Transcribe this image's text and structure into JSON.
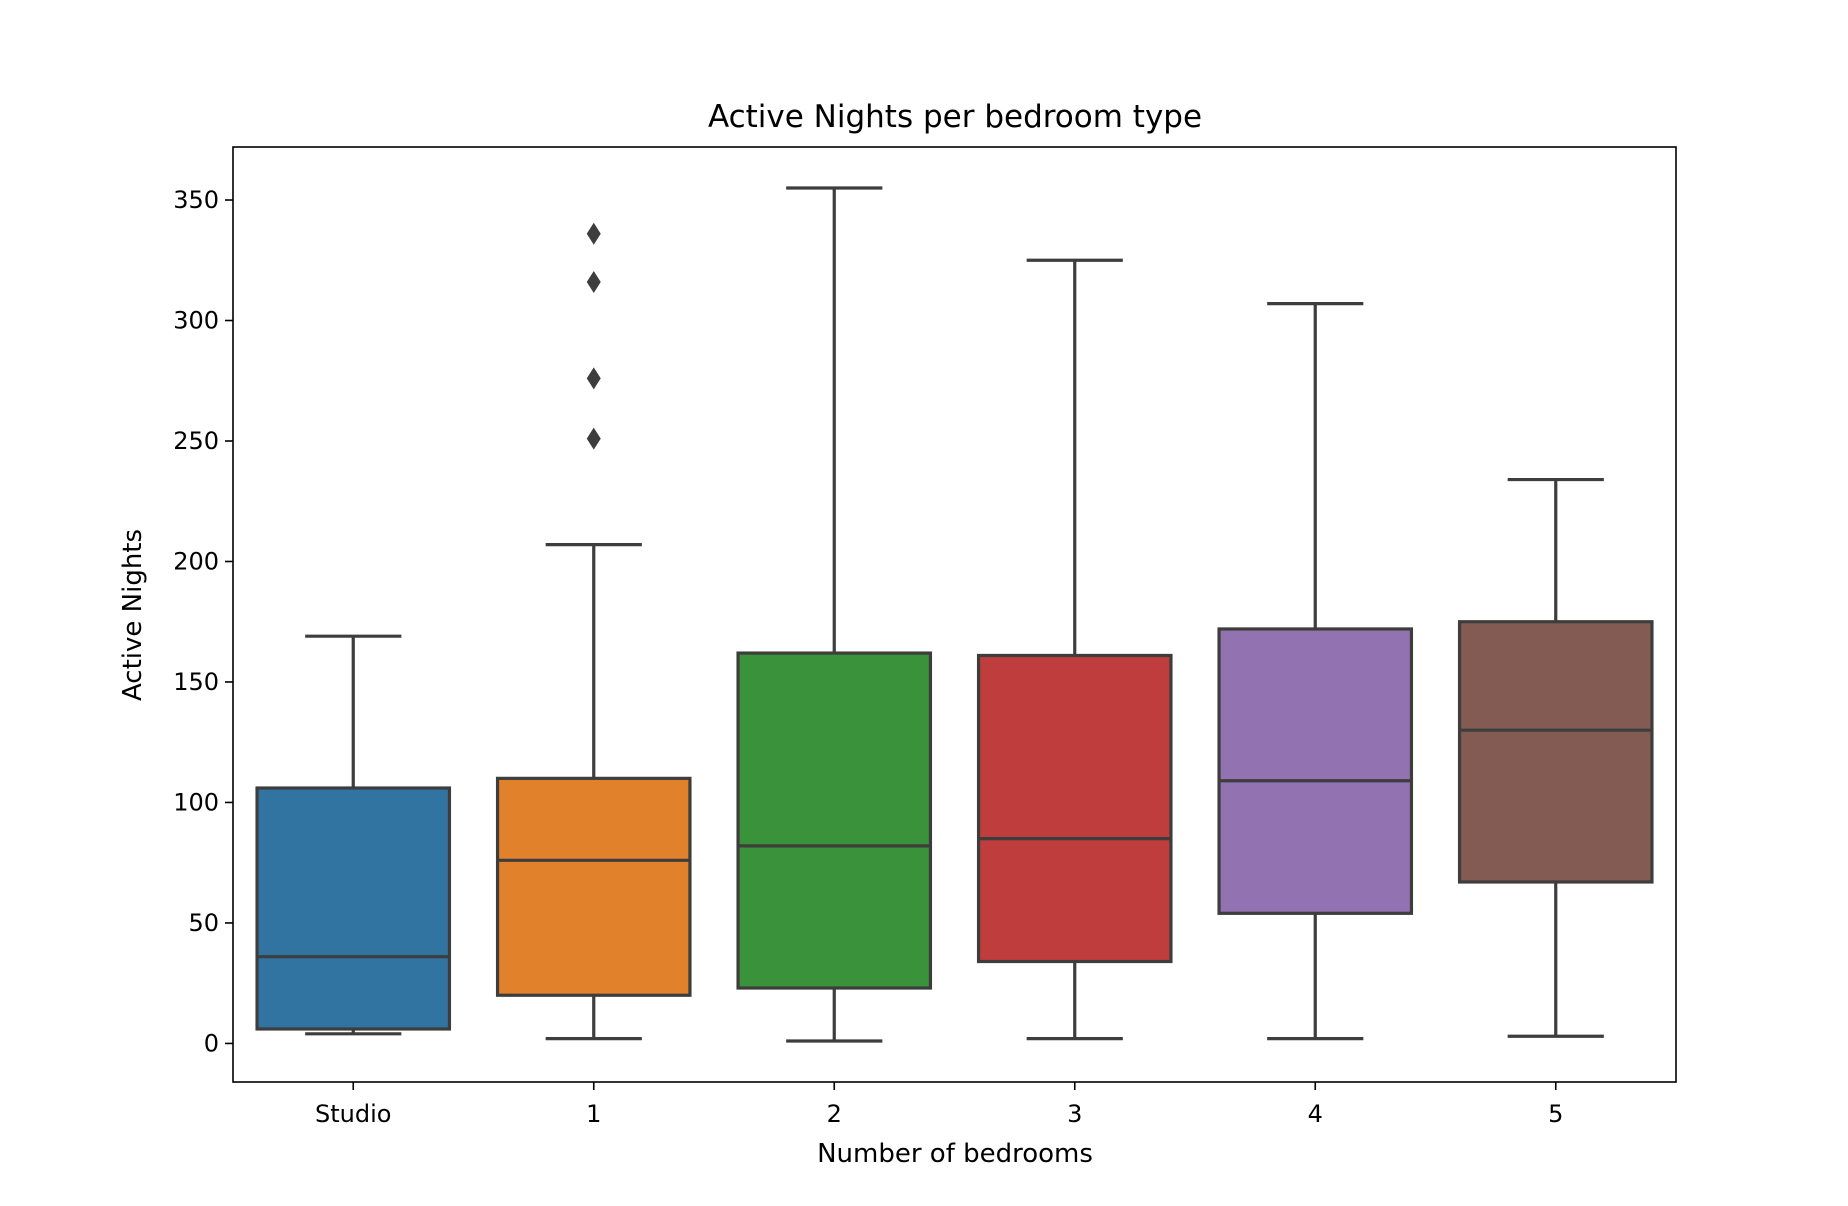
{
  "chart_data": {
    "type": "box",
    "title": "Active Nights per bedroom type",
    "xlabel": "Number of bedrooms",
    "ylabel": "Active Nights",
    "categories": [
      "Studio",
      "1",
      "2",
      "3",
      "4",
      "5"
    ],
    "ylim": [
      -16,
      372
    ],
    "yticks": [
      0,
      50,
      100,
      150,
      200,
      250,
      300,
      350
    ],
    "grid": false,
    "legend": "none",
    "boxes": [
      {
        "category": "Studio",
        "whisker_low": 4,
        "q1": 6,
        "median": 36,
        "q3": 106,
        "whisker_high": 169,
        "outliers": [],
        "color": "#3274a1"
      },
      {
        "category": "1",
        "whisker_low": 2,
        "q1": 20,
        "median": 76,
        "q3": 110,
        "whisker_high": 207,
        "outliers": [
          251,
          276,
          316,
          336
        ],
        "color": "#e1812c"
      },
      {
        "category": "2",
        "whisker_low": 1,
        "q1": 23,
        "median": 82,
        "q3": 162,
        "whisker_high": 355,
        "outliers": [],
        "color": "#3a923a"
      },
      {
        "category": "3",
        "whisker_low": 2,
        "q1": 34,
        "median": 85,
        "q3": 161,
        "whisker_high": 325,
        "outliers": [],
        "color": "#c03d3e"
      },
      {
        "category": "4",
        "whisker_low": 2,
        "q1": 54,
        "median": 109,
        "q3": 172,
        "whisker_high": 307,
        "outliers": [],
        "color": "#9372b2"
      },
      {
        "category": "5",
        "whisker_low": 3,
        "q1": 67,
        "median": 130,
        "q3": 175,
        "whisker_high": 234,
        "outliers": [],
        "color": "#845b53"
      }
    ],
    "line_color": "#3d3d3d"
  }
}
